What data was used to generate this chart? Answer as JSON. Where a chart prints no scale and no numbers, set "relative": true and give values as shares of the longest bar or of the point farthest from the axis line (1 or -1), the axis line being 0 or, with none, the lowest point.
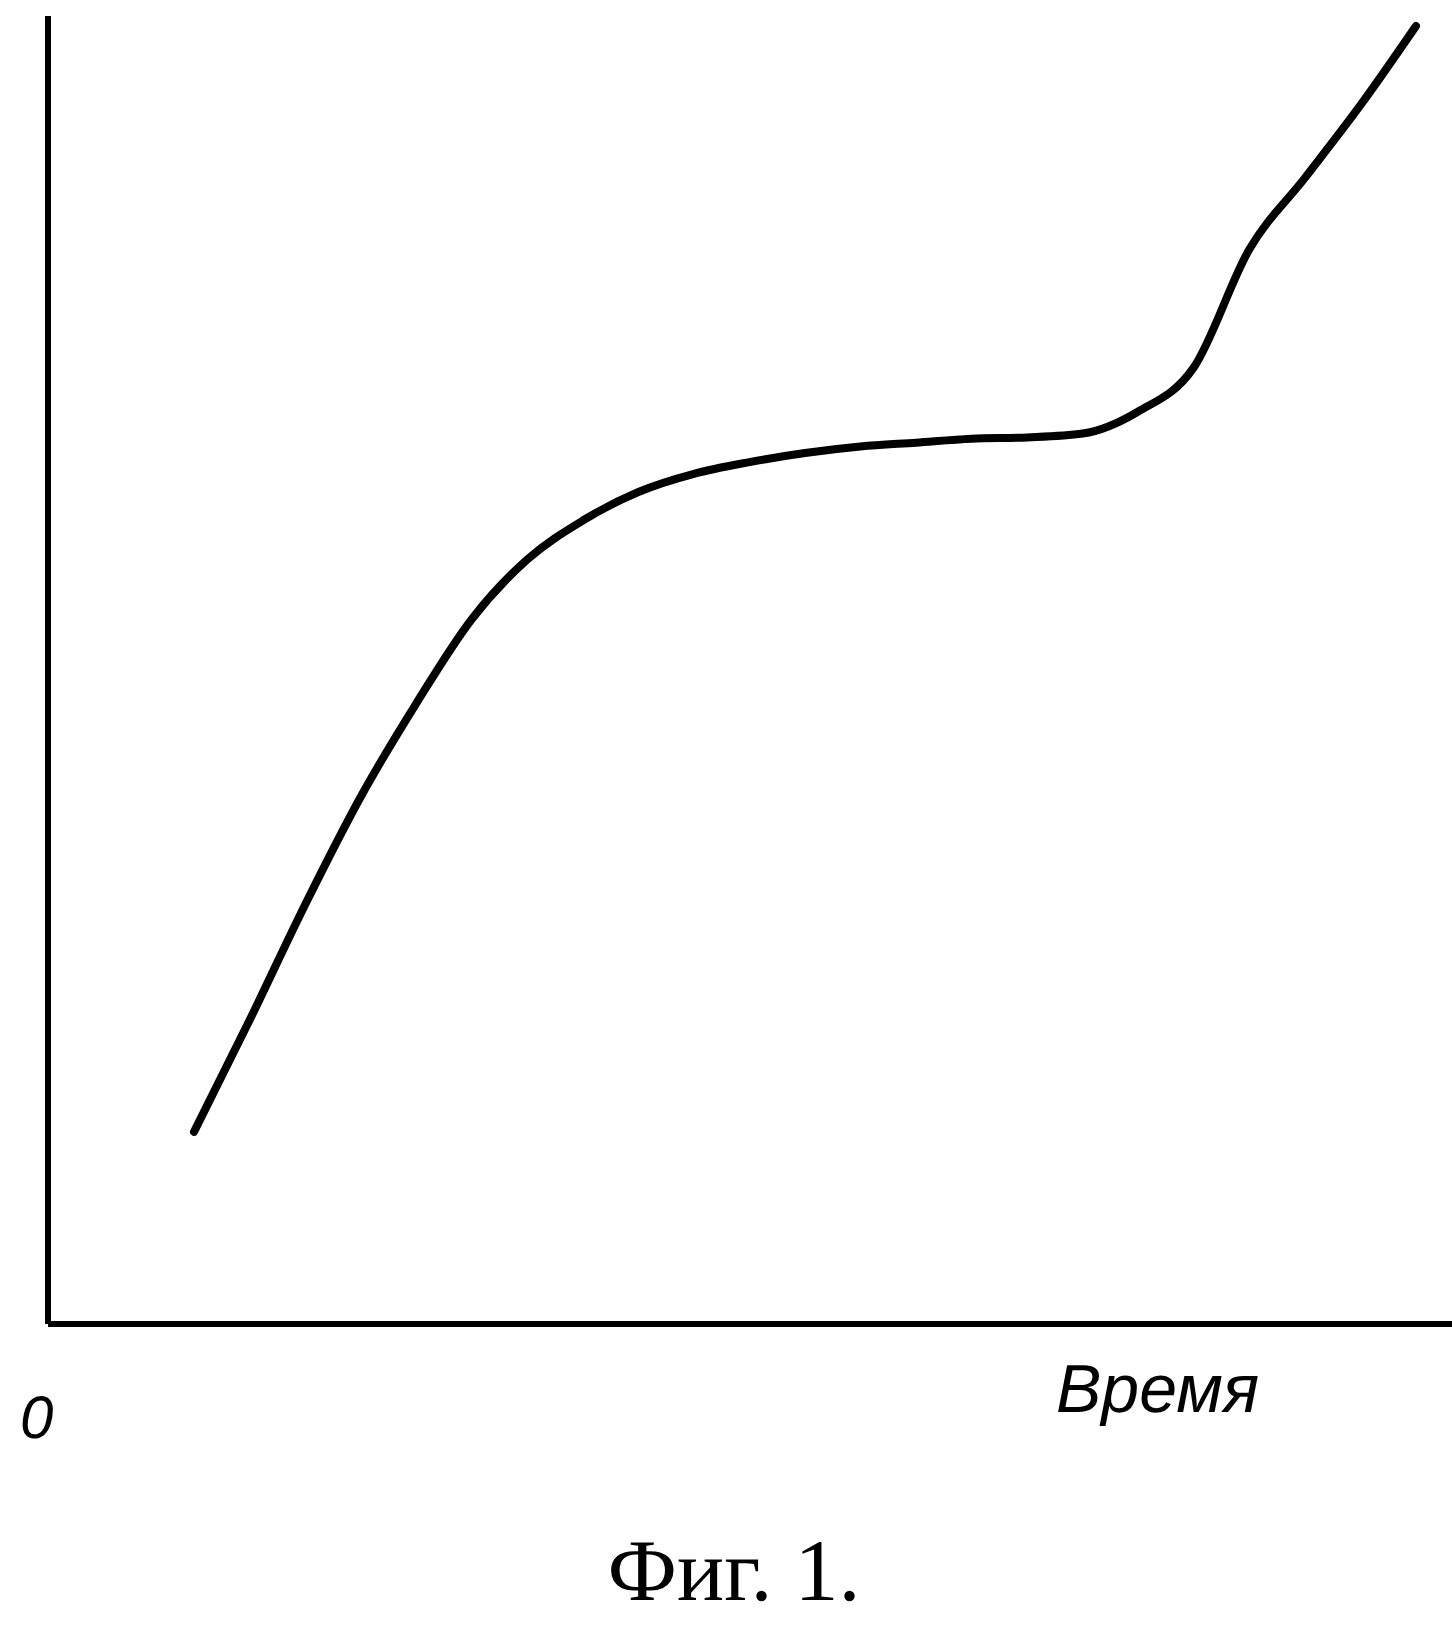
{
  "chart_data": {
    "type": "line",
    "title": "Фиг. 1.",
    "xlabel": "Время",
    "annotations": [
      "0"
    ],
    "relative": true,
    "categories": [
      null,
      null,
      null,
      null,
      null,
      null,
      null,
      null,
      null,
      null,
      null,
      null,
      null,
      null,
      null,
      null,
      null,
      null,
      null,
      null,
      null,
      null,
      null
    ],
    "series": [
      {
        "color": "#000000",
        "values": [
          0.148,
          0.234,
          0.323,
          0.406,
          0.478,
          0.543,
          0.589,
          0.619,
          0.641,
          0.655,
          0.664,
          0.671,
          0.676,
          0.679,
          0.682,
          0.683,
          0.686,
          0.703,
          0.737,
          0.828,
          0.883,
          0.939,
          1
        ]
      }
    ]
  }
}
